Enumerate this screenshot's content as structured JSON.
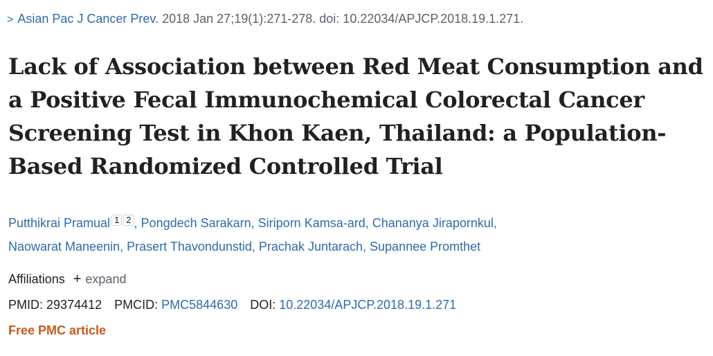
{
  "header": {
    "journal": "Asian Pac J Cancer Prev.",
    "citation": "2018 Jan 27;19(1):271-278. doi: 10.22034/APJCP.2018.19.1.271."
  },
  "title": "Lack of Association between Red Meat Consumption and a Positive Fecal Immunochemical Colorectal Cancer Screening Test in Khon Kaen, Thailand: a Population- Based Randomized Controlled Trial",
  "authors": [
    {
      "name": "Putthikrai Pramual",
      "affils": [
        "1",
        "2"
      ]
    },
    {
      "name": "Pongdech Sarakarn"
    },
    {
      "name": "Siriporn Kamsa-ard"
    },
    {
      "name": "Chananya Jirapornkul"
    },
    {
      "name": "Naowarat Maneenin"
    },
    {
      "name": "Prasert Thavondunstid"
    },
    {
      "name": "Prachak Juntarach"
    },
    {
      "name": "Supannee Promthet"
    }
  ],
  "affiliations": {
    "label": "Affiliations",
    "plus": "+",
    "expand": "expand"
  },
  "ids": {
    "pmid_label": "PMID:",
    "pmid": "29374412",
    "pmcid_label": "PMCID:",
    "pmcid": "PMC5844630",
    "doi_label": "DOI:",
    "doi": "10.22034/APJCP.2018.19.1.271"
  },
  "free_pmc": "Free PMC article",
  "colors": {
    "link": "#2f6ba8",
    "free": "#c35b1f",
    "text": "#212121"
  }
}
